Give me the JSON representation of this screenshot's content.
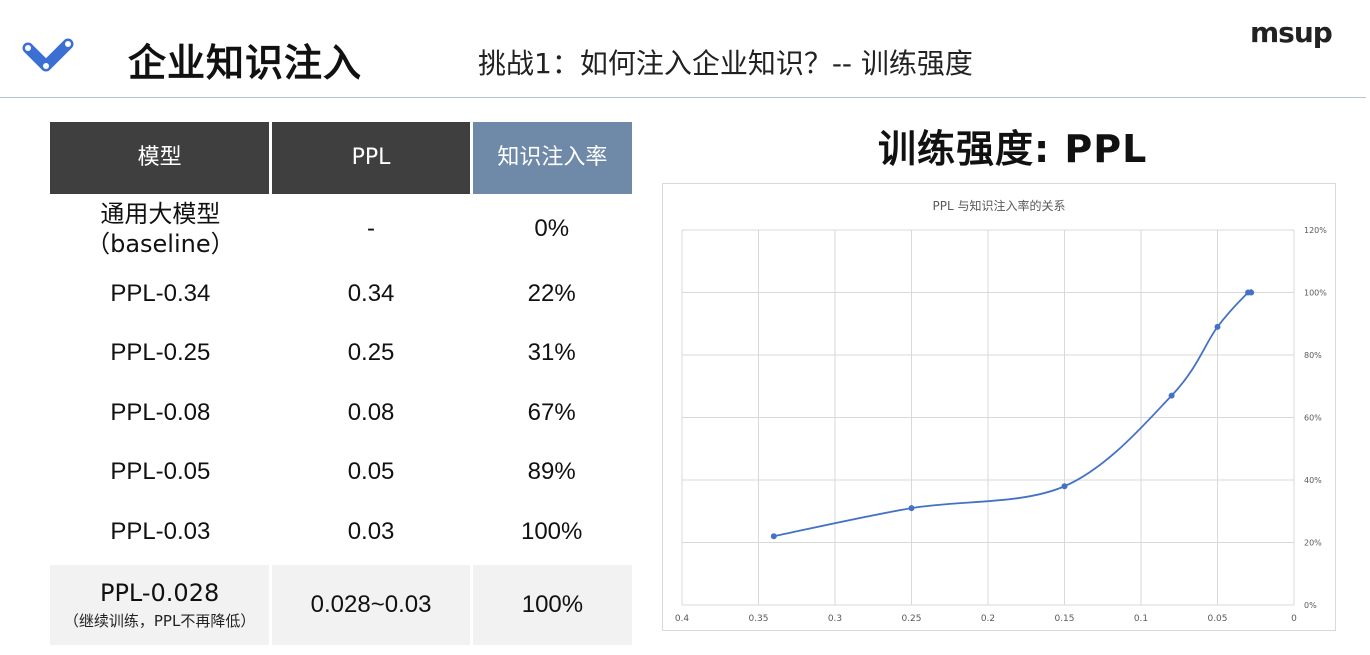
{
  "header": {
    "title": "企业知识注入",
    "subtitle": "挑战1：如何注入企业知识？-- 训练强度",
    "brand": "msup"
  },
  "table": {
    "headers": [
      "模型",
      "PPL",
      "知识注入率"
    ],
    "rows": [
      {
        "model": "通用大模型",
        "model_note": "（baseline）",
        "ppl": "-",
        "rate": "0%",
        "highlight": false
      },
      {
        "model": "PPL-0.34",
        "ppl": "0.34",
        "rate": "22%",
        "highlight": false
      },
      {
        "model": "PPL-0.25",
        "ppl": "0.25",
        "rate": "31%",
        "highlight": false
      },
      {
        "model": "PPL-0.08",
        "ppl": "0.08",
        "rate": "67%",
        "highlight": false
      },
      {
        "model": "PPL-0.05",
        "ppl": "0.05",
        "rate": "89%",
        "highlight": false
      },
      {
        "model": "PPL-0.03",
        "ppl": "0.03",
        "rate": "100%",
        "highlight": true
      }
    ],
    "last_row": {
      "model": "PPL-0.028",
      "model_note": "（继续训练，PPL不再降低）",
      "ppl": "0.028~0.03",
      "rate": "100%",
      "highlight": true
    }
  },
  "chart_heading": "训练强度: PPL",
  "colors": {
    "accent_red": "#e2344b",
    "header_dark": "#3f3f3f",
    "header_blue": "#6f8aa8",
    "line": "#4472c4"
  },
  "chart_data": {
    "type": "line",
    "title": "PPL 与知识注入率的关系",
    "xlabel": "",
    "ylabel": "",
    "x_reversed": true,
    "xlim": [
      0,
      0.4
    ],
    "ylim": [
      0,
      120
    ],
    "x_ticks": [
      "0.4",
      "0.35",
      "0.3",
      "0.25",
      "0.2",
      "0.15",
      "0.1",
      "0.05",
      "0"
    ],
    "y_ticks": [
      "0%",
      "20%",
      "40%",
      "60%",
      "80%",
      "100%",
      "120%"
    ],
    "y_axis_side": "right",
    "grid": true,
    "series": [
      {
        "x": [
          0.34,
          0.25,
          0.15,
          0.08,
          0.05,
          0.03,
          0.028
        ],
        "y": [
          22,
          31,
          38,
          67,
          89,
          100,
          100
        ]
      }
    ]
  }
}
